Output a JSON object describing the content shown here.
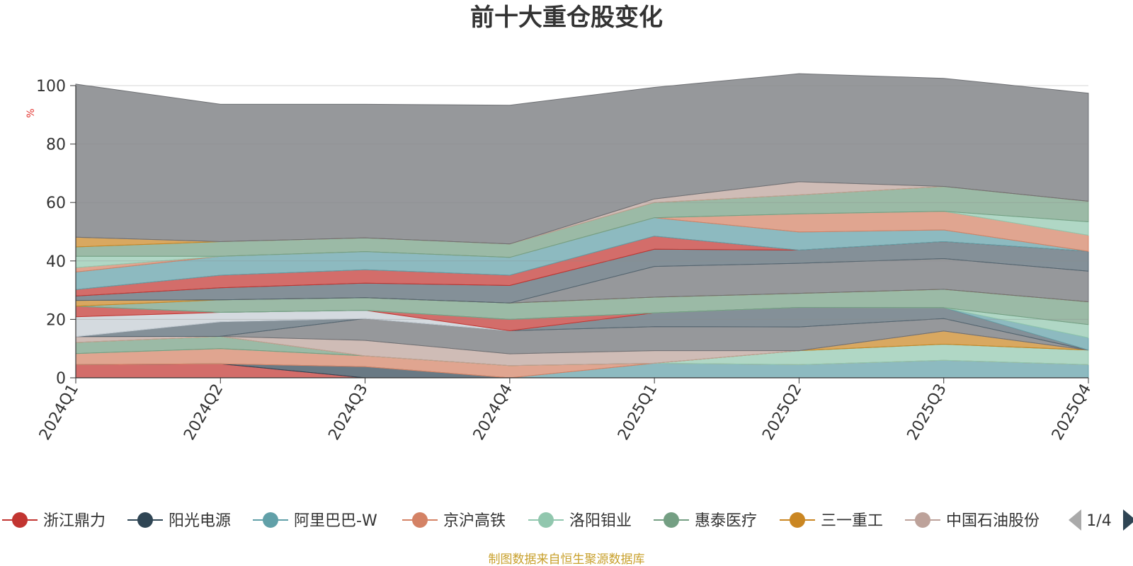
{
  "chart_data": {
    "type": "area",
    "stacked": true,
    "title": "前十大重仓股变化",
    "ylabel": "%",
    "ylim": [
      0,
      100
    ],
    "yticks": [
      0,
      20,
      40,
      60,
      80,
      100
    ],
    "categories": [
      "2024Q1",
      "2024Q2",
      "2024Q3",
      "2024Q4",
      "2025Q1",
      "2025Q2",
      "2025Q3",
      "2025Q4"
    ],
    "series": [
      {
        "name": "浙江鼎力",
        "color": "#c23531",
        "values": [
          4.5,
          4.8,
          0,
          0,
          0,
          0,
          0,
          0
        ]
      },
      {
        "name": "阳光电源",
        "color": "#2f4554",
        "values": [
          0,
          0,
          3.8,
          0,
          0,
          0,
          0,
          0
        ]
      },
      {
        "name": "阿里巴巴-W",
        "color": "#61a0a8",
        "values": [
          0,
          0,
          0,
          0,
          5.0,
          4.5,
          6.0,
          4.5
        ]
      },
      {
        "name": "京沪高铁",
        "color": "#d48265",
        "values": [
          3.8,
          5.2,
          3.7,
          4.2,
          0,
          0,
          0,
          0
        ]
      },
      {
        "name": "洛阳钼业",
        "color": "#91c7ae",
        "values": [
          0,
          0,
          0,
          0,
          0,
          4.8,
          5.5,
          5.0
        ]
      },
      {
        "name": "惠泰医疗",
        "color": "#749f83",
        "values": [
          3.8,
          4.2,
          0,
          0,
          0,
          0,
          0,
          0
        ]
      },
      {
        "name": "三一重工",
        "color": "#ca8622",
        "values": [
          0,
          0,
          0,
          0,
          0,
          0,
          4.5,
          0
        ]
      },
      {
        "name": "中国石油股份",
        "color": "#bda29a",
        "values": [
          2.0,
          0,
          5.3,
          4.0,
          4.3,
          0,
          0,
          0
        ]
      }
    ],
    "extra_series_colors": [
      "#6e7074",
      "#546570",
      "#c4ccd3",
      "#c23531",
      "#61a0a8",
      "#d48265",
      "#91c7ae",
      "#749f83",
      "#ca8622",
      "#bda29a"
    ],
    "other_series": [
      {
        "values": [
          0,
          0,
          7.5,
          7.9,
          8.2,
          8.1,
          4.3,
          0
        ]
      },
      {
        "values": [
          0,
          5.0,
          0,
          0,
          4.7,
          6.7,
          3.7,
          0
        ]
      },
      {
        "values": [
          6.8,
          3.2,
          2.8,
          0,
          0,
          0,
          0,
          0
        ]
      },
      {
        "values": [
          3.6,
          0,
          0,
          3.9,
          0,
          0,
          0,
          0
        ]
      },
      {
        "values": [
          0,
          0,
          0,
          0,
          0,
          0,
          0,
          4.2
        ]
      },
      {
        "values": [
          0,
          0,
          0,
          0,
          0,
          0,
          0,
          0
        ]
      },
      {
        "values": [
          0,
          0,
          0,
          0,
          0,
          0,
          0,
          4.5
        ]
      },
      {
        "values": [
          0,
          4.3,
          4.3,
          5.6,
          5.4,
          4.8,
          6.3,
          7.8
        ]
      },
      {
        "values": [
          2.0,
          0,
          0,
          0,
          0,
          0,
          0,
          0
        ]
      },
      {
        "values": [
          0,
          0,
          0,
          0,
          0,
          0,
          0,
          0
        ]
      },
      {
        "values": [
          0,
          0,
          0,
          0,
          10.5,
          10.3,
          10.5,
          10.5
        ]
      },
      {
        "values": [
          1.5,
          4.1,
          5.0,
          6.0,
          5.9,
          4.5,
          5.8,
          6.8
        ]
      },
      {
        "values": [
          0,
          0,
          0,
          0,
          0,
          0,
          0,
          0
        ]
      },
      {
        "values": [
          2.2,
          4.3,
          4.6,
          3.5,
          4.5,
          0,
          0,
          0
        ]
      },
      {
        "values": [
          6.0,
          6.5,
          6.2,
          6.1,
          6.3,
          6.2,
          4.0,
          0
        ]
      },
      {
        "values": [
          1.5,
          0,
          0,
          0,
          0,
          6.2,
          6.4,
          5.5
        ]
      },
      {
        "values": [
          3.9,
          0,
          0,
          0,
          0,
          0,
          0,
          4.6
        ]
      },
      {
        "values": [
          3.2,
          5.0,
          4.7,
          4.6,
          5.2,
          6.5,
          8.5,
          7.0
        ]
      },
      {
        "values": [
          3.3,
          0,
          0,
          0,
          0,
          0,
          0,
          0
        ]
      },
      {
        "values": [
          0,
          0,
          0,
          0,
          1.2,
          4.5,
          0,
          0
        ]
      },
      {
        "values": [
          52.4,
          47.0,
          45.7,
          47.5,
          38.2,
          37.0,
          37.0,
          37.0
        ]
      }
    ],
    "legend_position": "bottom",
    "legend_page": "1/4",
    "source_note": "制图数据来自恒生聚源数据库"
  }
}
